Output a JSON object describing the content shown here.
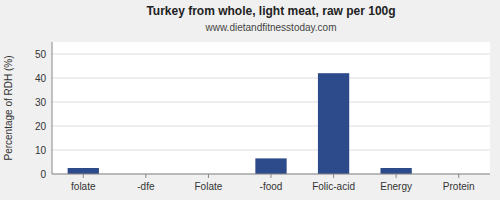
{
  "chart_data": {
    "type": "bar",
    "title": "Turkey from whole, light meat, raw per 100g",
    "subtitle": "www.dietandfitnesstoday.com",
    "ylabel": "Percentage of RDH (%)",
    "categories": [
      "folate",
      "-dfe",
      "Folate",
      "-food",
      "Folic-acid",
      "Energy",
      "Protein"
    ],
    "values": [
      2.5,
      0,
      0,
      6.5,
      42,
      2.5,
      0
    ],
    "color": "#2d4a8a",
    "ylim": [
      0,
      55
    ],
    "yticks": [
      0,
      10,
      20,
      30,
      40,
      50
    ],
    "grid": true
  }
}
